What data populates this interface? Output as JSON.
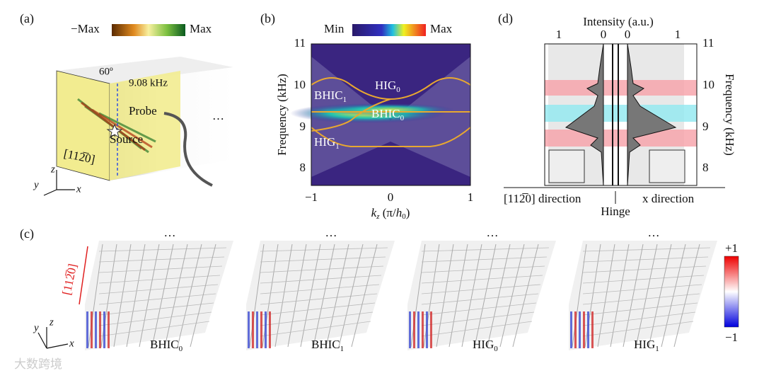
{
  "panel_a": {
    "label": "(a)",
    "colorbar_min": "−Max",
    "colorbar_max": "Max",
    "angle": "60º",
    "frequency": "9.08 kHz",
    "probe": "Probe",
    "source": "Source",
    "direction": "[112̅0]",
    "axes": [
      "z",
      "y",
      "x"
    ],
    "ellipsis": "…"
  },
  "panel_b": {
    "label": "(b)",
    "colorbar_min": "Min",
    "colorbar_max": "Max",
    "yticks": [
      "11",
      "10",
      "9",
      "8"
    ],
    "ylabel": "Frequency (kHz)",
    "xticks": [
      "−1",
      "0",
      "1"
    ],
    "xlabel": {
      "k": "k",
      "k_sub": "z",
      "rest": " (π/",
      "h": "h",
      "h_sub": "0",
      "close": ")"
    },
    "states": [
      {
        "main": "HIG",
        "sub": "0"
      },
      {
        "main": "BHIC",
        "sub": "1"
      },
      {
        "main": "BHIC",
        "sub": "0"
      },
      {
        "main": "HIG",
        "sub": "1"
      }
    ]
  },
  "panel_c": {
    "label": "(c)",
    "ellipsis": "…",
    "direction": "[112̅0]",
    "axes": [
      "y",
      "z",
      "x"
    ],
    "colorbar_max": "+1",
    "colorbar_min": "−1",
    "modes": [
      {
        "main": "BHIC",
        "sub": "0"
      },
      {
        "main": "BHIC",
        "sub": "1"
      },
      {
        "main": "HIG",
        "sub": "0"
      },
      {
        "main": "HIG",
        "sub": "1"
      }
    ]
  },
  "panel_d": {
    "label": "(d)",
    "xlabel": "Intensity (a.u.)",
    "xticks": [
      "1",
      "0",
      "0",
      "1"
    ],
    "yticks": [
      "11",
      "10",
      "9",
      "8"
    ],
    "ylabel": "Frequency (kHz)",
    "left_direction": "[112̅0] direction",
    "right_direction": "x direction",
    "hinge": "Hinge"
  },
  "watermark": "大数跨境"
}
